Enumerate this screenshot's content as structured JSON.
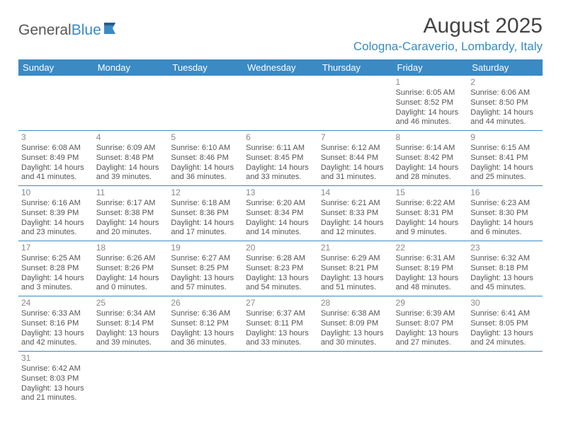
{
  "logo": {
    "text1": "General",
    "text2": "Blue"
  },
  "header": {
    "title": "August 2025",
    "location": "Cologna-Caraverio, Lombardy, Italy"
  },
  "colors": {
    "accent": "#3b8ac4",
    "header_text": "#ffffff",
    "body_text": "#555555",
    "daynum": "#888888",
    "background": "#ffffff"
  },
  "calendar": {
    "columns": [
      "Sunday",
      "Monday",
      "Tuesday",
      "Wednesday",
      "Thursday",
      "Friday",
      "Saturday"
    ],
    "weeks": [
      [
        null,
        null,
        null,
        null,
        null,
        {
          "day": "1",
          "sunrise": "Sunrise: 6:05 AM",
          "sunset": "Sunset: 8:52 PM",
          "daylight": "Daylight: 14 hours and 46 minutes."
        },
        {
          "day": "2",
          "sunrise": "Sunrise: 6:06 AM",
          "sunset": "Sunset: 8:50 PM",
          "daylight": "Daylight: 14 hours and 44 minutes."
        }
      ],
      [
        {
          "day": "3",
          "sunrise": "Sunrise: 6:08 AM",
          "sunset": "Sunset: 8:49 PM",
          "daylight": "Daylight: 14 hours and 41 minutes."
        },
        {
          "day": "4",
          "sunrise": "Sunrise: 6:09 AM",
          "sunset": "Sunset: 8:48 PM",
          "daylight": "Daylight: 14 hours and 39 minutes."
        },
        {
          "day": "5",
          "sunrise": "Sunrise: 6:10 AM",
          "sunset": "Sunset: 8:46 PM",
          "daylight": "Daylight: 14 hours and 36 minutes."
        },
        {
          "day": "6",
          "sunrise": "Sunrise: 6:11 AM",
          "sunset": "Sunset: 8:45 PM",
          "daylight": "Daylight: 14 hours and 33 minutes."
        },
        {
          "day": "7",
          "sunrise": "Sunrise: 6:12 AM",
          "sunset": "Sunset: 8:44 PM",
          "daylight": "Daylight: 14 hours and 31 minutes."
        },
        {
          "day": "8",
          "sunrise": "Sunrise: 6:14 AM",
          "sunset": "Sunset: 8:42 PM",
          "daylight": "Daylight: 14 hours and 28 minutes."
        },
        {
          "day": "9",
          "sunrise": "Sunrise: 6:15 AM",
          "sunset": "Sunset: 8:41 PM",
          "daylight": "Daylight: 14 hours and 25 minutes."
        }
      ],
      [
        {
          "day": "10",
          "sunrise": "Sunrise: 6:16 AM",
          "sunset": "Sunset: 8:39 PM",
          "daylight": "Daylight: 14 hours and 23 minutes."
        },
        {
          "day": "11",
          "sunrise": "Sunrise: 6:17 AM",
          "sunset": "Sunset: 8:38 PM",
          "daylight": "Daylight: 14 hours and 20 minutes."
        },
        {
          "day": "12",
          "sunrise": "Sunrise: 6:18 AM",
          "sunset": "Sunset: 8:36 PM",
          "daylight": "Daylight: 14 hours and 17 minutes."
        },
        {
          "day": "13",
          "sunrise": "Sunrise: 6:20 AM",
          "sunset": "Sunset: 8:34 PM",
          "daylight": "Daylight: 14 hours and 14 minutes."
        },
        {
          "day": "14",
          "sunrise": "Sunrise: 6:21 AM",
          "sunset": "Sunset: 8:33 PM",
          "daylight": "Daylight: 14 hours and 12 minutes."
        },
        {
          "day": "15",
          "sunrise": "Sunrise: 6:22 AM",
          "sunset": "Sunset: 8:31 PM",
          "daylight": "Daylight: 14 hours and 9 minutes."
        },
        {
          "day": "16",
          "sunrise": "Sunrise: 6:23 AM",
          "sunset": "Sunset: 8:30 PM",
          "daylight": "Daylight: 14 hours and 6 minutes."
        }
      ],
      [
        {
          "day": "17",
          "sunrise": "Sunrise: 6:25 AM",
          "sunset": "Sunset: 8:28 PM",
          "daylight": "Daylight: 14 hours and 3 minutes."
        },
        {
          "day": "18",
          "sunrise": "Sunrise: 6:26 AM",
          "sunset": "Sunset: 8:26 PM",
          "daylight": "Daylight: 14 hours and 0 minutes."
        },
        {
          "day": "19",
          "sunrise": "Sunrise: 6:27 AM",
          "sunset": "Sunset: 8:25 PM",
          "daylight": "Daylight: 13 hours and 57 minutes."
        },
        {
          "day": "20",
          "sunrise": "Sunrise: 6:28 AM",
          "sunset": "Sunset: 8:23 PM",
          "daylight": "Daylight: 13 hours and 54 minutes."
        },
        {
          "day": "21",
          "sunrise": "Sunrise: 6:29 AM",
          "sunset": "Sunset: 8:21 PM",
          "daylight": "Daylight: 13 hours and 51 minutes."
        },
        {
          "day": "22",
          "sunrise": "Sunrise: 6:31 AM",
          "sunset": "Sunset: 8:19 PM",
          "daylight": "Daylight: 13 hours and 48 minutes."
        },
        {
          "day": "23",
          "sunrise": "Sunrise: 6:32 AM",
          "sunset": "Sunset: 8:18 PM",
          "daylight": "Daylight: 13 hours and 45 minutes."
        }
      ],
      [
        {
          "day": "24",
          "sunrise": "Sunrise: 6:33 AM",
          "sunset": "Sunset: 8:16 PM",
          "daylight": "Daylight: 13 hours and 42 minutes."
        },
        {
          "day": "25",
          "sunrise": "Sunrise: 6:34 AM",
          "sunset": "Sunset: 8:14 PM",
          "daylight": "Daylight: 13 hours and 39 minutes."
        },
        {
          "day": "26",
          "sunrise": "Sunrise: 6:36 AM",
          "sunset": "Sunset: 8:12 PM",
          "daylight": "Daylight: 13 hours and 36 minutes."
        },
        {
          "day": "27",
          "sunrise": "Sunrise: 6:37 AM",
          "sunset": "Sunset: 8:11 PM",
          "daylight": "Daylight: 13 hours and 33 minutes."
        },
        {
          "day": "28",
          "sunrise": "Sunrise: 6:38 AM",
          "sunset": "Sunset: 8:09 PM",
          "daylight": "Daylight: 13 hours and 30 minutes."
        },
        {
          "day": "29",
          "sunrise": "Sunrise: 6:39 AM",
          "sunset": "Sunset: 8:07 PM",
          "daylight": "Daylight: 13 hours and 27 minutes."
        },
        {
          "day": "30",
          "sunrise": "Sunrise: 6:41 AM",
          "sunset": "Sunset: 8:05 PM",
          "daylight": "Daylight: 13 hours and 24 minutes."
        }
      ],
      [
        {
          "day": "31",
          "sunrise": "Sunrise: 6:42 AM",
          "sunset": "Sunset: 8:03 PM",
          "daylight": "Daylight: 13 hours and 21 minutes."
        },
        null,
        null,
        null,
        null,
        null,
        null
      ]
    ]
  }
}
